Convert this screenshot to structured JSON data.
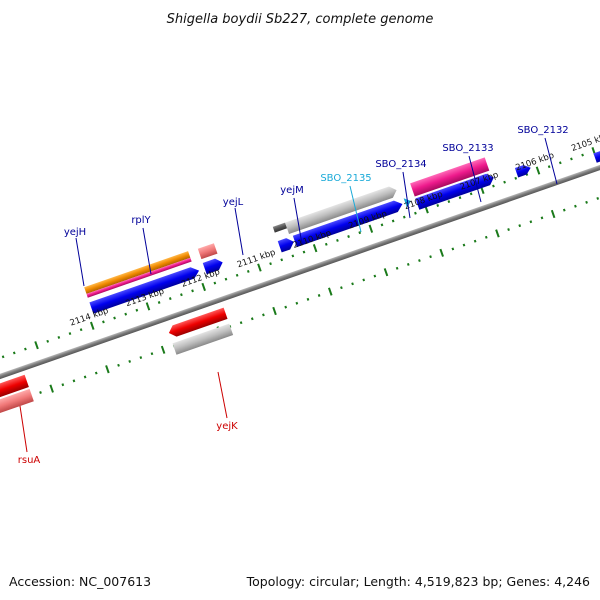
{
  "title": "Shigella boydii Sb227, complete genome",
  "footer": {
    "accession": "Accession: NC_007613",
    "summary": "Topology: circular; Length: 4,519,823 bp; Genes: 4,246"
  },
  "colors": {
    "backbone": "#808080",
    "ticks": "#1a7a1a",
    "cds_forward": "#0000ee",
    "cds_reverse": "#ee0000",
    "gene_forward": "#c0c0c0",
    "rna_pink": "#ee1a8c",
    "rna_orange": "#f08a00",
    "rna_light": "#f07878",
    "dark_gray": "#555555",
    "label_blue": "#000099",
    "label_cyan": "#1aaad8",
    "label_red": "#cc0000"
  },
  "kbp_labels": [
    {
      "text": "2114 kbp",
      "pos": 2114
    },
    {
      "text": "2113 kbp",
      "pos": 2113
    },
    {
      "text": "2112 kbp",
      "pos": 2112
    },
    {
      "text": "2111 kbp",
      "pos": 2111
    },
    {
      "text": "2110 kbp",
      "pos": 2110
    },
    {
      "text": "2109 kbp",
      "pos": 2109
    },
    {
      "text": "2108 kbp",
      "pos": 2108
    },
    {
      "text": "2107 kbp",
      "pos": 2107
    },
    {
      "text": "2106 kbp",
      "pos": 2106
    },
    {
      "text": "2105 kbp",
      "pos": 2105
    }
  ],
  "gene_labels": [
    {
      "text": "yejH",
      "color": "#000099"
    },
    {
      "text": "rplY",
      "color": "#000099"
    },
    {
      "text": "yejL",
      "color": "#000099"
    },
    {
      "text": "yejM",
      "color": "#000099"
    },
    {
      "text": "SBO_2135",
      "color": "#1aaad8"
    },
    {
      "text": "SBO_2134",
      "color": "#000099"
    },
    {
      "text": "SBO_2133",
      "color": "#000099"
    },
    {
      "text": "SBO_2132",
      "color": "#000099"
    },
    {
      "text": "yejK",
      "color": "#cc0000"
    },
    {
      "text": "rsuA",
      "color": "#cc0000"
    }
  ]
}
